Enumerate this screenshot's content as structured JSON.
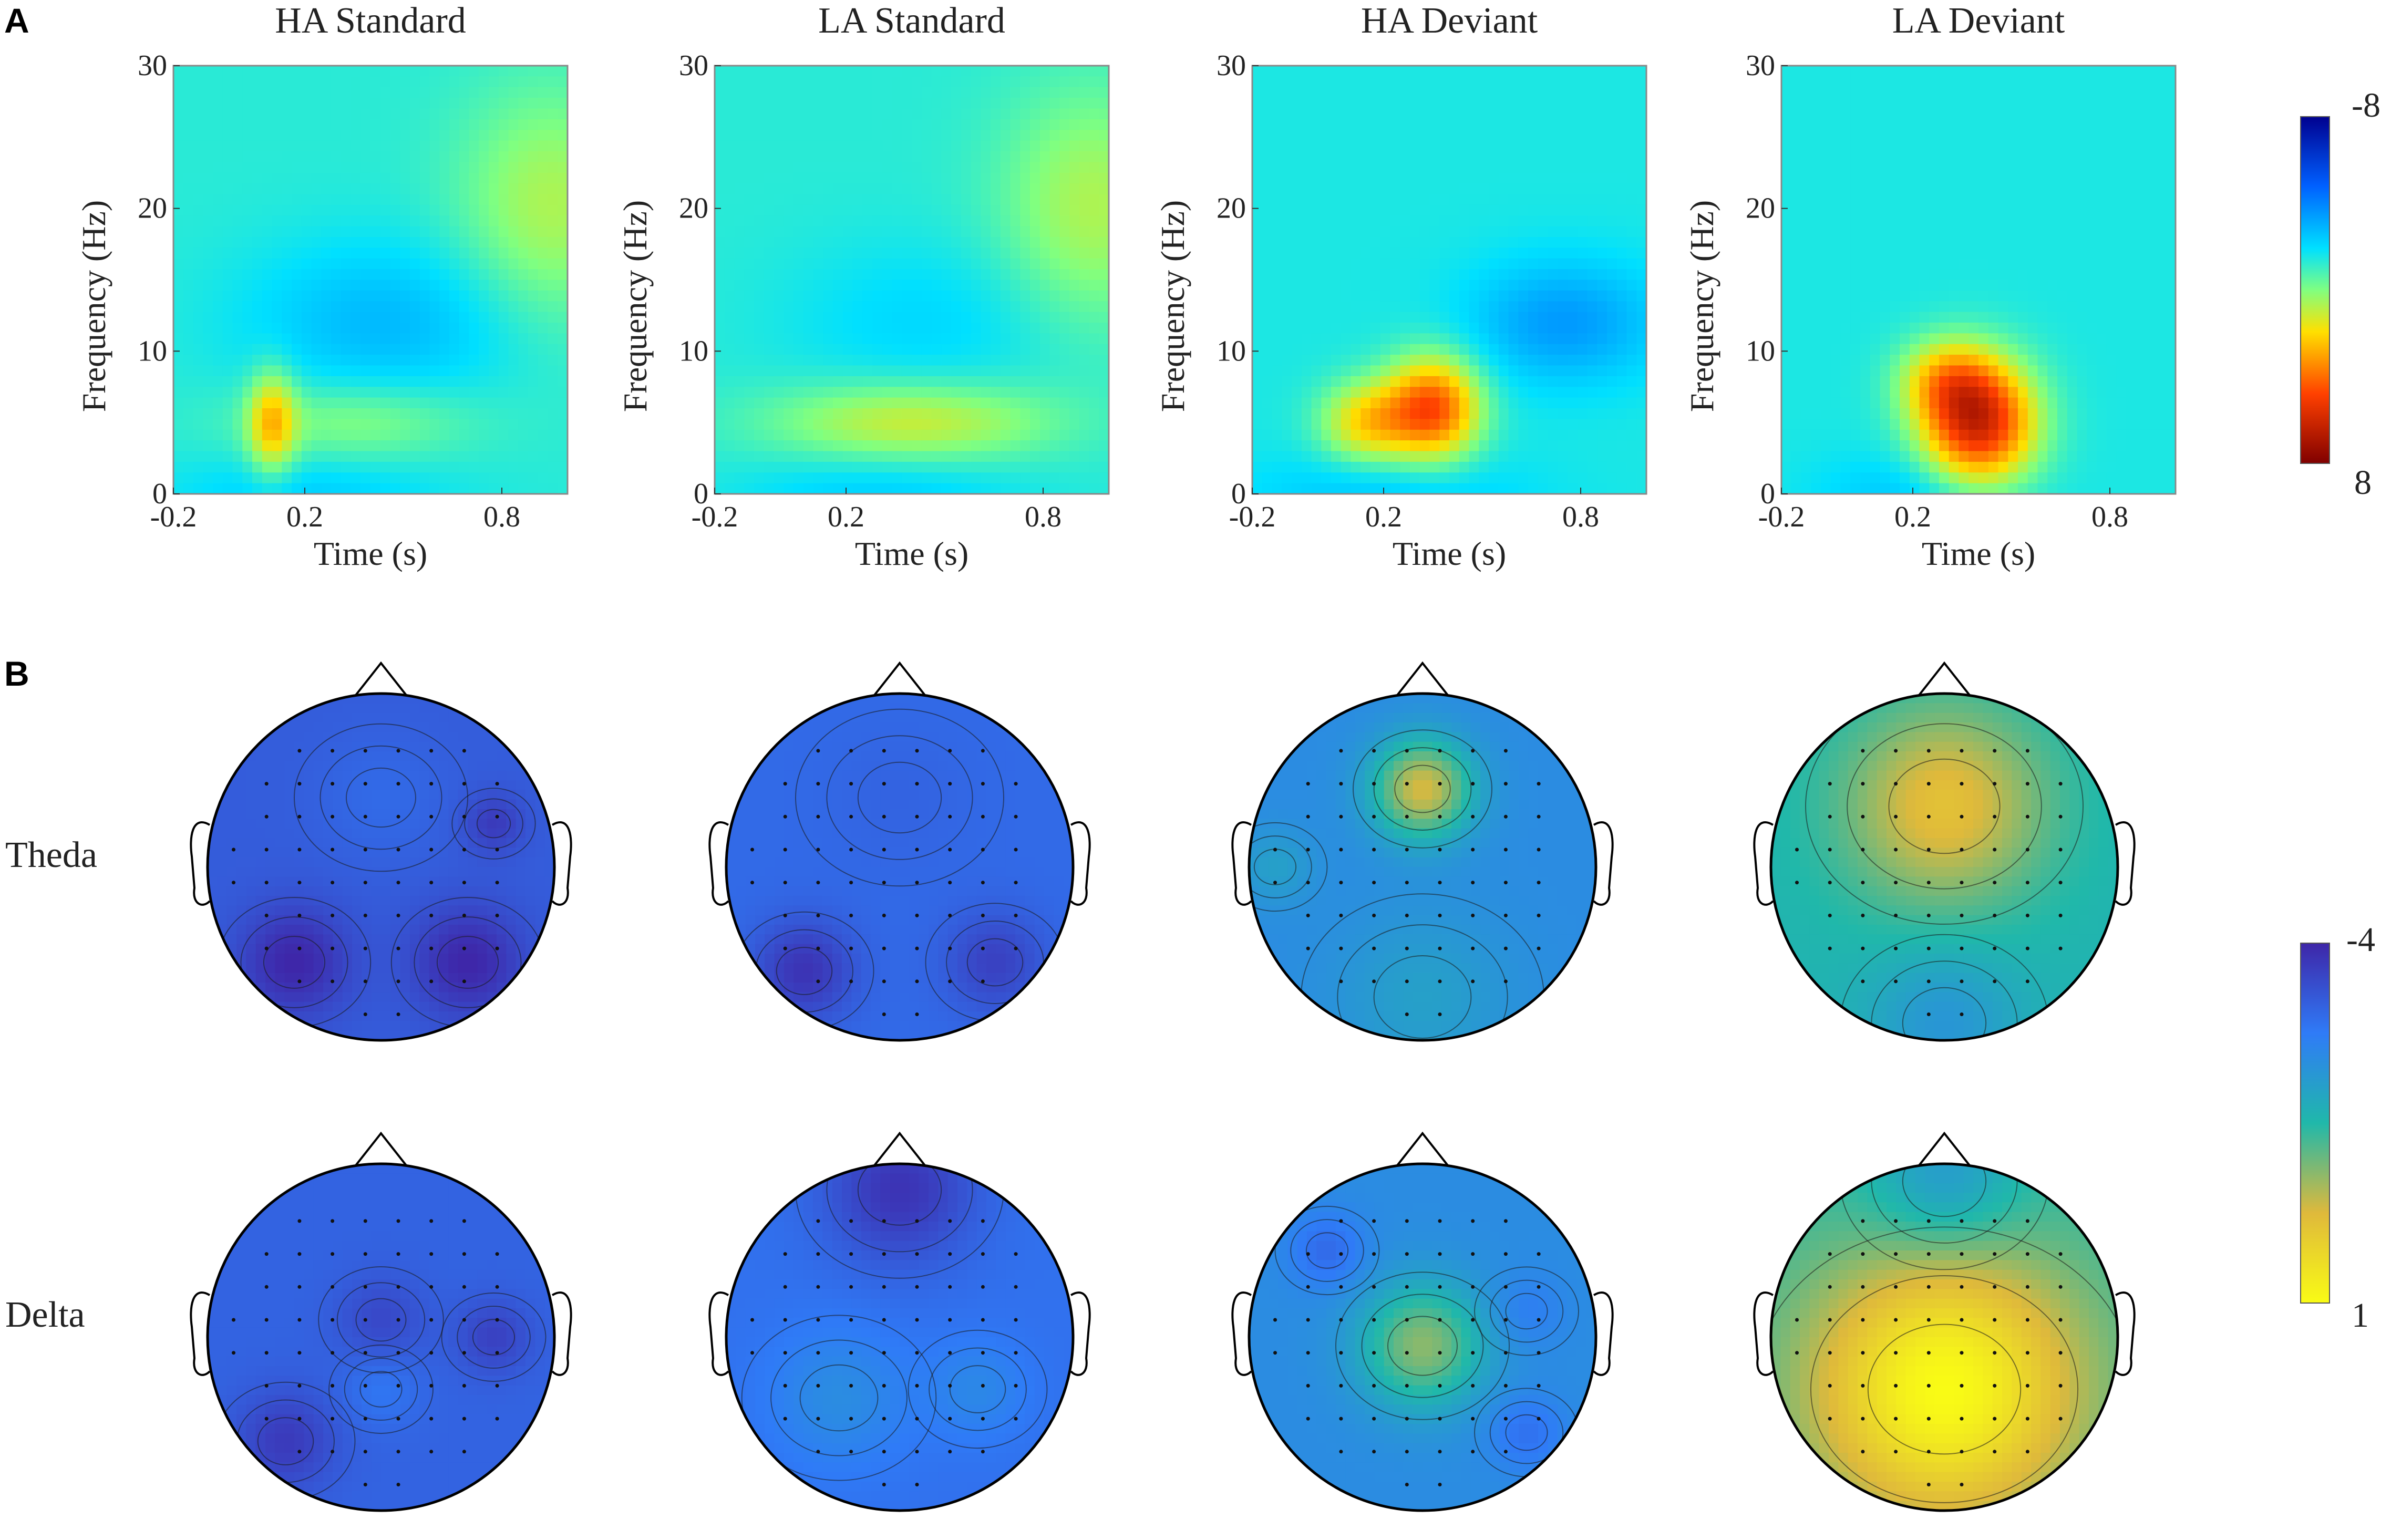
{
  "panel_labels": [
    "A",
    "B"
  ],
  "chart_data": [
    {
      "type": "heatmap",
      "panel": "A",
      "ylabel": "Frequency (Hz)",
      "xlabel": "Time (s)",
      "xlim": [
        -0.2,
        1.0
      ],
      "ylim": [
        0,
        30
      ],
      "xticks": [
        "-0.2",
        "0.2",
        "0.8"
      ],
      "xtick_values": [
        -0.2,
        0.2,
        0.8
      ],
      "yticks": [
        "0",
        "10",
        "20",
        "30"
      ],
      "ytick_values": [
        0,
        10,
        20,
        30
      ],
      "colorbar": {
        "top_label": "-8",
        "bottom_label": "8",
        "vmin": -8,
        "vmax": 8
      },
      "series": [
        {
          "name": "HA Standard",
          "base": -1.3,
          "blobs": [
            {
              "t": 0.1,
              "f": 5,
              "st": 0.05,
              "sf": 2.5,
              "v": 3.5
            },
            {
              "t": 0.35,
              "f": 5,
              "st": 0.25,
              "sf": 2,
              "v": 1.5
            },
            {
              "t": 0.45,
              "f": 12,
              "st": 0.3,
              "sf": 4,
              "v": -1.5
            },
            {
              "t": 0.95,
              "f": 20,
              "st": 0.2,
              "sf": 6,
              "v": 2.0
            },
            {
              "t": 0.2,
              "f": 0,
              "st": 0.3,
              "sf": 2,
              "v": -1.0
            }
          ]
        },
        {
          "name": "LA Standard",
          "base": -1.3,
          "blobs": [
            {
              "t": 0.4,
              "f": 5,
              "st": 0.3,
              "sf": 2,
              "v": 2.5
            },
            {
              "t": 0.95,
              "f": 20,
              "st": 0.2,
              "sf": 6,
              "v": 2.0
            },
            {
              "t": 0.45,
              "f": 12,
              "st": 0.3,
              "sf": 4,
              "v": -0.8
            },
            {
              "t": 0.3,
              "f": 0,
              "st": 0.3,
              "sf": 2,
              "v": -1.0
            }
          ]
        },
        {
          "name": "HA Deviant",
          "base": -1.5,
          "blobs": [
            {
              "t": 0.35,
              "f": 6,
              "st": 0.1,
              "sf": 2.5,
              "v": 6.0
            },
            {
              "t": 0.15,
              "f": 5,
              "st": 0.1,
              "sf": 2,
              "v": 3.5
            },
            {
              "t": 0.75,
              "f": 12,
              "st": 0.2,
              "sf": 3,
              "v": -2.0
            },
            {
              "t": 0.2,
              "f": 0,
              "st": 0.3,
              "sf": 2,
              "v": -1.0
            }
          ]
        },
        {
          "name": "LA Deviant",
          "base": -1.5,
          "blobs": [
            {
              "t": 0.4,
              "f": 5,
              "st": 0.12,
              "sf": 3,
              "v": 7.5
            },
            {
              "t": 0.3,
              "f": 8,
              "st": 0.1,
              "sf": 2,
              "v": 3.0
            },
            {
              "t": 0.2,
              "f": 0,
              "st": 0.2,
              "sf": 2,
              "v": -1.0
            }
          ]
        }
      ]
    },
    {
      "type": "heatmap",
      "subtype": "topographic-map",
      "panel": "B",
      "row_labels": [
        "Theda",
        "Delta"
      ],
      "column_conditions": [
        "HA Standard",
        "LA Standard",
        "HA Deviant",
        "LA Deviant"
      ],
      "colorbar": {
        "top_label": "-4",
        "bottom_label": "1",
        "vmin": -4,
        "vmax": 1
      },
      "maps": [
        {
          "row": "Theda",
          "condition": "HA Standard",
          "base": -3.2,
          "blobs": [
            {
              "x": -0.5,
              "y": -0.55,
              "s": 0.22,
              "v": -0.8
            },
            {
              "x": 0.5,
              "y": -0.55,
              "s": 0.22,
              "v": -0.8
            },
            {
              "x": 0.0,
              "y": 0.4,
              "s": 0.25,
              "v": 0.2
            },
            {
              "x": 0.65,
              "y": 0.25,
              "s": 0.12,
              "v": -0.5
            }
          ]
        },
        {
          "row": "Theda",
          "condition": "LA Standard",
          "base": -3.0,
          "blobs": [
            {
              "x": -0.55,
              "y": -0.6,
              "s": 0.2,
              "v": -0.8
            },
            {
              "x": 0.55,
              "y": -0.55,
              "s": 0.2,
              "v": -0.6
            },
            {
              "x": 0.0,
              "y": 0.4,
              "s": 0.3,
              "v": -0.1
            }
          ]
        },
        {
          "row": "Theda",
          "condition": "HA Deviant",
          "base": -2.4,
          "blobs": [
            {
              "x": 0.0,
              "y": 0.45,
              "s": 0.2,
              "v": 2.1
            },
            {
              "x": 0.0,
              "y": -0.75,
              "s": 0.35,
              "v": 0.4
            },
            {
              "x": -0.85,
              "y": 0.0,
              "s": 0.15,
              "v": 0.4
            }
          ]
        },
        {
          "row": "Theda",
          "condition": "LA Deviant",
          "base": -1.6,
          "blobs": [
            {
              "x": 0.0,
              "y": 0.35,
              "s": 0.4,
              "v": 1.5
            },
            {
              "x": 0.0,
              "y": -0.9,
              "s": 0.3,
              "v": -0.6
            }
          ]
        },
        {
          "row": "Delta",
          "condition": "HA Standard",
          "base": -3.1,
          "blobs": [
            {
              "x": -0.55,
              "y": -0.6,
              "s": 0.2,
              "v": -0.6
            },
            {
              "x": 0.0,
              "y": 0.1,
              "s": 0.18,
              "v": -0.4
            },
            {
              "x": 0.65,
              "y": 0.0,
              "s": 0.15,
              "v": -0.5
            },
            {
              "x": 0.0,
              "y": -0.3,
              "s": 0.15,
              "v": 0.3
            }
          ]
        },
        {
          "row": "Delta",
          "condition": "LA Standard",
          "base": -2.9,
          "blobs": [
            {
              "x": 0.0,
              "y": 0.85,
              "s": 0.3,
              "v": -0.9
            },
            {
              "x": -0.35,
              "y": -0.35,
              "s": 0.28,
              "v": 0.5
            },
            {
              "x": 0.45,
              "y": -0.3,
              "s": 0.2,
              "v": 0.4
            }
          ]
        },
        {
          "row": "Delta",
          "condition": "HA Deviant",
          "base": -2.4,
          "blobs": [
            {
              "x": 0.0,
              "y": -0.05,
              "s": 0.25,
              "v": 1.6
            },
            {
              "x": -0.55,
              "y": 0.5,
              "s": 0.15,
              "v": -0.6
            },
            {
              "x": 0.6,
              "y": -0.55,
              "s": 0.15,
              "v": -0.5
            },
            {
              "x": 0.6,
              "y": 0.15,
              "s": 0.15,
              "v": -0.3
            }
          ]
        },
        {
          "row": "Delta",
          "condition": "LA Deviant",
          "base": -1.4,
          "blobs": [
            {
              "x": 0.0,
              "y": -0.3,
              "s": 0.55,
              "v": 2.4
            },
            {
              "x": 0.0,
              "y": 0.9,
              "s": 0.3,
              "v": -0.8
            }
          ]
        }
      ]
    }
  ]
}
